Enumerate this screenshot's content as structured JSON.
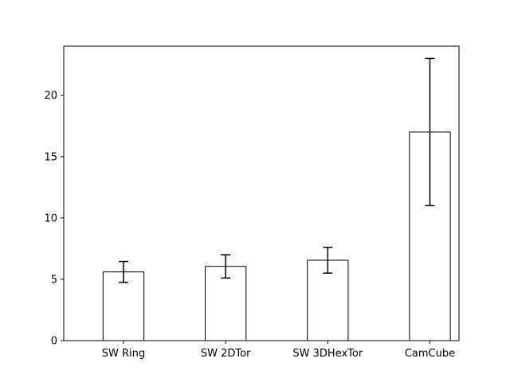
{
  "chart_data": {
    "type": "bar",
    "categories": [
      "SW Ring",
      "SW 2DTor",
      "SW 3DHexTor",
      "CamCube"
    ],
    "values": [
      5.6,
      6.05,
      6.55,
      17.0
    ],
    "errors": [
      0.85,
      0.95,
      1.05,
      6.0
    ],
    "title": "",
    "xlabel": "",
    "ylabel": "",
    "ylim": [
      0,
      24
    ],
    "yticks": [
      0,
      5,
      10,
      15,
      20
    ],
    "grid": false,
    "bar_fill": "#ffffff",
    "bar_edge": "#000000"
  }
}
